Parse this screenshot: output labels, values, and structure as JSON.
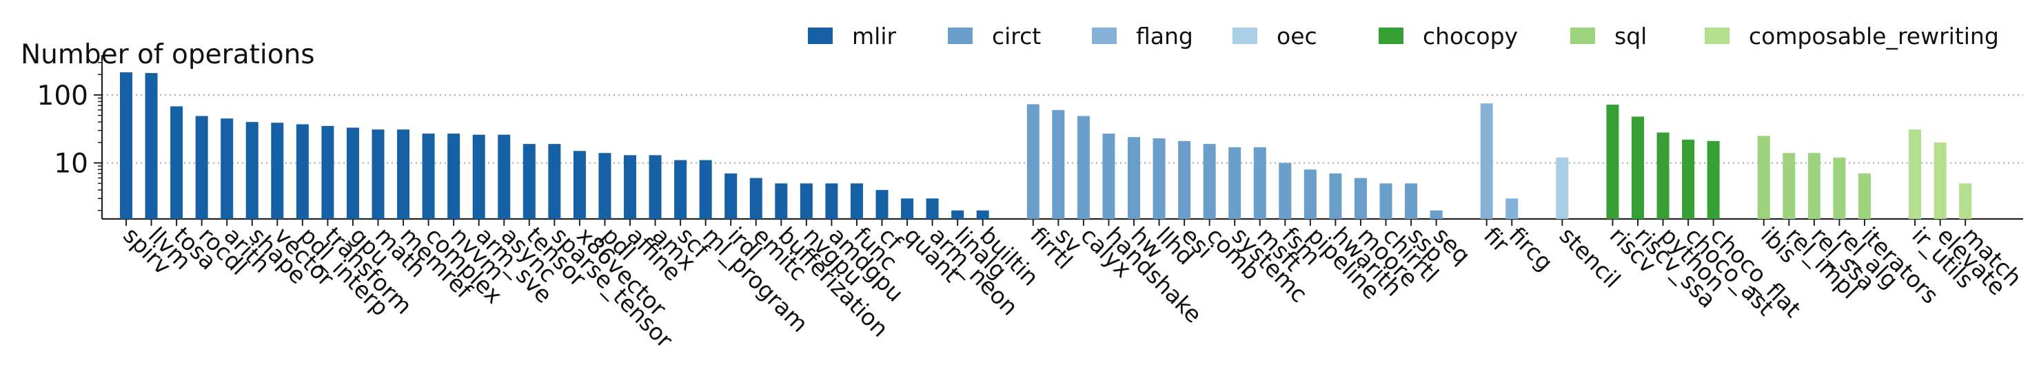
{
  "chart_data": {
    "type": "bar",
    "scale": "log",
    "title": "",
    "xlabel": "",
    "ylabel": "Number of operations",
    "ylim": [
      1.5,
      320
    ],
    "yticks": [
      {
        "value": 10,
        "label": "10"
      },
      {
        "value": 100,
        "label": "100"
      }
    ],
    "grid": "horizontal-dotted",
    "legend_position": "top",
    "series": [
      {
        "name": "mlir",
        "color": "#1660a5",
        "items": [
          {
            "label": "spirv",
            "value": 215
          },
          {
            "label": "llvm",
            "value": 210
          },
          {
            "label": "tosa",
            "value": 68
          },
          {
            "label": "rocdl",
            "value": 49
          },
          {
            "label": "arith",
            "value": 45
          },
          {
            "label": "shape",
            "value": 40
          },
          {
            "label": "vector",
            "value": 39
          },
          {
            "label": "pdl_interp",
            "value": 37
          },
          {
            "label": "transform",
            "value": 35
          },
          {
            "label": "gpu",
            "value": 33
          },
          {
            "label": "math",
            "value": 31
          },
          {
            "label": "memref",
            "value": 31
          },
          {
            "label": "complex",
            "value": 27
          },
          {
            "label": "nvvm",
            "value": 27
          },
          {
            "label": "arm_sve",
            "value": 26
          },
          {
            "label": "async",
            "value": 26
          },
          {
            "label": "tensor",
            "value": 19
          },
          {
            "label": "sparse_tensor",
            "value": 19
          },
          {
            "label": "x86vector",
            "value": 15
          },
          {
            "label": "pdl",
            "value": 14
          },
          {
            "label": "affine",
            "value": 13
          },
          {
            "label": "amx",
            "value": 13
          },
          {
            "label": "scf",
            "value": 11
          },
          {
            "label": "ml_program",
            "value": 11
          },
          {
            "label": "irdl",
            "value": 7
          },
          {
            "label": "emitc",
            "value": 6
          },
          {
            "label": "bufferization",
            "value": 5
          },
          {
            "label": "nvgpu",
            "value": 5
          },
          {
            "label": "amdgpu",
            "value": 5
          },
          {
            "label": "func",
            "value": 5
          },
          {
            "label": "cf",
            "value": 4
          },
          {
            "label": "quant",
            "value": 3
          },
          {
            "label": "arm_neon",
            "value": 3
          },
          {
            "label": "linalg",
            "value": 2
          },
          {
            "label": "builtin",
            "value": 2
          }
        ]
      },
      {
        "name": "circt",
        "color": "#6b9fcb",
        "items": [
          {
            "label": "firrtl",
            "value": 73
          },
          {
            "label": "sv",
            "value": 60
          },
          {
            "label": "calyx",
            "value": 49
          },
          {
            "label": "handshake",
            "value": 27
          },
          {
            "label": "hw",
            "value": 24
          },
          {
            "label": "llhd",
            "value": 23
          },
          {
            "label": "esi",
            "value": 21
          },
          {
            "label": "comb",
            "value": 19
          },
          {
            "label": "systemc",
            "value": 17
          },
          {
            "label": "msft",
            "value": 17
          },
          {
            "label": "fsm",
            "value": 10
          },
          {
            "label": "pipeline",
            "value": 8
          },
          {
            "label": "hwarith",
            "value": 7
          },
          {
            "label": "moore",
            "value": 6
          },
          {
            "label": "chirrtl",
            "value": 5
          },
          {
            "label": "ssp",
            "value": 5
          },
          {
            "label": "seq",
            "value": 2
          }
        ]
      },
      {
        "name": "flang",
        "color": "#86b2d8",
        "items": [
          {
            "label": "fir",
            "value": 75
          },
          {
            "label": "fircg",
            "value": 3
          }
        ]
      },
      {
        "name": "oec",
        "color": "#a8cfe5",
        "items": [
          {
            "label": "stencil",
            "value": 12
          }
        ]
      },
      {
        "name": "chocopy",
        "color": "#36a037",
        "items": [
          {
            "label": "riscv",
            "value": 72
          },
          {
            "label": "riscv_ssa",
            "value": 48
          },
          {
            "label": "python",
            "value": 28
          },
          {
            "label": "choco_ast",
            "value": 22
          },
          {
            "label": "choco_flat",
            "value": 21
          }
        ]
      },
      {
        "name": "sql",
        "color": "#9dd37c",
        "items": [
          {
            "label": "ibis",
            "value": 25
          },
          {
            "label": "rel_impl",
            "value": 14
          },
          {
            "label": "rel_ssa",
            "value": 14
          },
          {
            "label": "rel_alg",
            "value": 12
          },
          {
            "label": "iterators",
            "value": 7
          }
        ]
      },
      {
        "name": "composable_rewriting",
        "color": "#b3df8f",
        "items": [
          {
            "label": "ir_utils",
            "value": 31
          },
          {
            "label": "elevate",
            "value": 20
          },
          {
            "label": "match",
            "value": 5
          }
        ]
      }
    ]
  }
}
